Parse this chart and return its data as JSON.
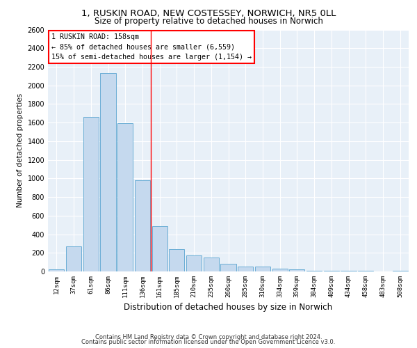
{
  "title_line1": "1, RUSKIN ROAD, NEW COSTESSEY, NORWICH, NR5 0LL",
  "title_line2": "Size of property relative to detached houses in Norwich",
  "xlabel": "Distribution of detached houses by size in Norwich",
  "ylabel": "Number of detached properties",
  "bar_color": "#c5d9ee",
  "bar_edge_color": "#6aadd5",
  "categories": [
    "12sqm",
    "37sqm",
    "61sqm",
    "86sqm",
    "111sqm",
    "136sqm",
    "161sqm",
    "185sqm",
    "210sqm",
    "235sqm",
    "260sqm",
    "285sqm",
    "310sqm",
    "334sqm",
    "359sqm",
    "384sqm",
    "409sqm",
    "434sqm",
    "458sqm",
    "483sqm",
    "508sqm"
  ],
  "values": [
    20,
    270,
    1660,
    2130,
    1590,
    980,
    490,
    240,
    170,
    150,
    80,
    55,
    55,
    28,
    20,
    10,
    5,
    5,
    5,
    0,
    5
  ],
  "annotation_text": "1 RUSKIN ROAD: 158sqm\n← 85% of detached houses are smaller (6,559)\n15% of semi-detached houses are larger (1,154) →",
  "vline_x": 6.0,
  "ylim": [
    0,
    2600
  ],
  "yticks": [
    0,
    200,
    400,
    600,
    800,
    1000,
    1200,
    1400,
    1600,
    1800,
    2000,
    2200,
    2400,
    2600
  ],
  "background_color": "#e8f0f8",
  "footer_line1": "Contains HM Land Registry data © Crown copyright and database right 2024.",
  "footer_line2": "Contains public sector information licensed under the Open Government Licence v3.0."
}
